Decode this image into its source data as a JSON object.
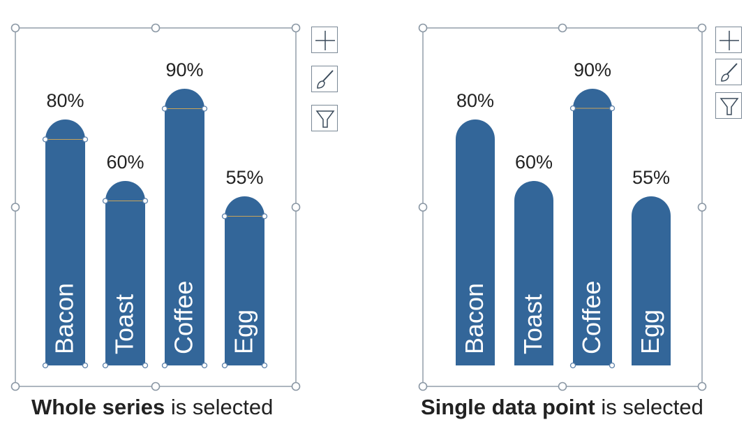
{
  "chart_data": [
    {
      "type": "bar",
      "bar_style": "rounded-top",
      "categories": [
        "Bacon",
        "Toast",
        "Coffee",
        "Egg"
      ],
      "values": [
        80,
        60,
        90,
        55
      ],
      "data_labels": [
        "80%",
        "60%",
        "90%",
        "55%"
      ],
      "ylim": [
        0,
        100
      ],
      "grid": false,
      "legend": "none",
      "selection": "whole-series",
      "caption_bold": "Whole series",
      "caption_rest": " is selected"
    },
    {
      "type": "bar",
      "bar_style": "rounded-top",
      "categories": [
        "Bacon",
        "Toast",
        "Coffee",
        "Egg"
      ],
      "values": [
        80,
        60,
        90,
        55
      ],
      "data_labels": [
        "80%",
        "60%",
        "90%",
        "55%"
      ],
      "ylim": [
        0,
        100
      ],
      "grid": false,
      "legend": "none",
      "selection": "single-data-point",
      "selected_category": "Coffee",
      "caption_bold": "Single data point",
      "caption_rest": " is selected"
    }
  ],
  "colors": {
    "bar": "#336699",
    "label": "#222222",
    "category_text": "#ffffff",
    "frame": "#8a97a4",
    "handle_fill": "#ffffff",
    "selection_handle": "#5a7fa8"
  },
  "chart_buttons": [
    {
      "name": "chart-elements-button",
      "icon": "plus-icon"
    },
    {
      "name": "chart-styles-button",
      "icon": "brush-icon"
    },
    {
      "name": "chart-filters-button",
      "icon": "funnel-icon"
    }
  ]
}
